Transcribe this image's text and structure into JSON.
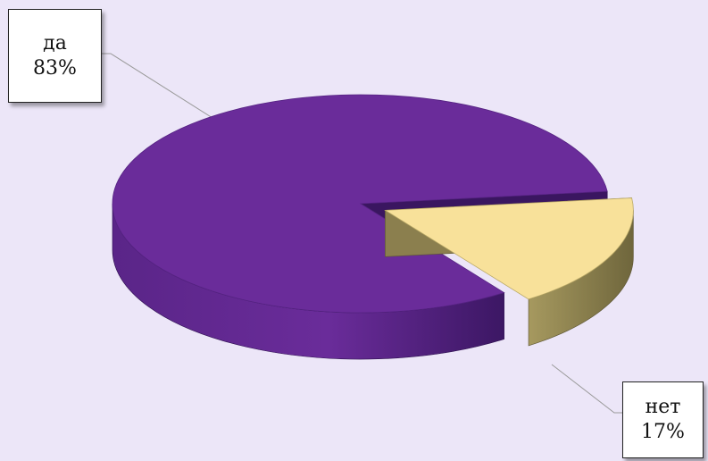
{
  "chart_data": {
    "type": "pie",
    "style": "3d-exploded",
    "categories": [
      "да",
      "нет"
    ],
    "values": [
      83,
      17
    ],
    "data_labels": [
      {
        "category": "да",
        "percent": "83%"
      },
      {
        "category": "нет",
        "percent": "17%"
      }
    ],
    "colors": [
      "#6a2c9a",
      "#f8e19a"
    ],
    "side_colors": [
      "#4e1f78",
      "#8b7f4e"
    ],
    "title": "",
    "legend": "none"
  }
}
